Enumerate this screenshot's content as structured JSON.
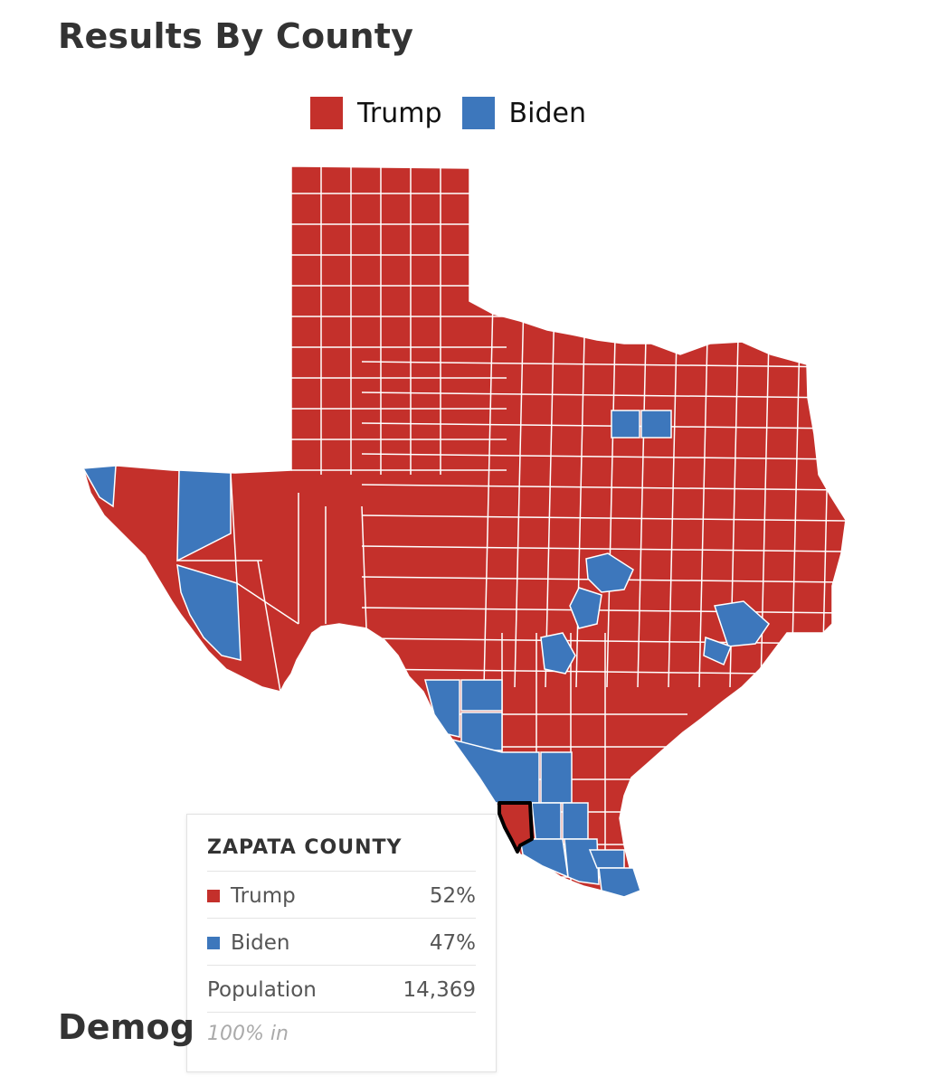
{
  "page": {
    "title": "Results By County",
    "next_section_title": "Demog"
  },
  "legend": [
    {
      "label": "Trump",
      "color": "#c4302b"
    },
    {
      "label": "Biden",
      "color": "#3d77bc"
    }
  ],
  "map": {
    "region": "Texas",
    "colors": {
      "trump": "#c4302b",
      "biden": "#3d77bc",
      "border": "#ffffff",
      "highlight": "#000000"
    },
    "winner_by_county": "majority Trump; Biden in El Paso, Presidio, Brewster, Culberson-adjacent west counties, Dallas, Tarrant-adjacent, Travis, Bexar, Harris, Fort Bend, border counties (Webb, Starr, Hidalgo, Cameron, Willacy, Maverick, Dimmit, Zavala, Jim Hogg, Brooks, Duval)",
    "highlighted_county": "Zapata County"
  },
  "tooltip": {
    "county": "ZAPATA COUNTY",
    "rows": [
      {
        "label": "Trump",
        "value": "52%",
        "color": "#c4302b"
      },
      {
        "label": "Biden",
        "value": "47%",
        "color": "#3d77bc"
      },
      {
        "label": "Population",
        "value": "14,369"
      }
    ],
    "footer": "100% in"
  }
}
